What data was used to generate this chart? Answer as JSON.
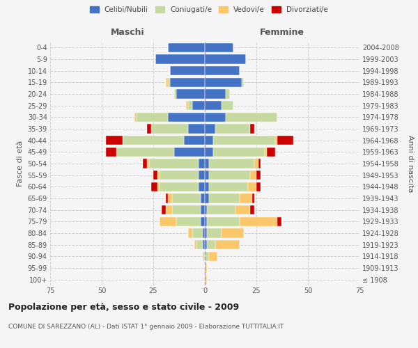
{
  "age_groups": [
    "100+",
    "95-99",
    "90-94",
    "85-89",
    "80-84",
    "75-79",
    "70-74",
    "65-69",
    "60-64",
    "55-59",
    "50-54",
    "45-49",
    "40-44",
    "35-39",
    "30-34",
    "25-29",
    "20-24",
    "15-19",
    "10-14",
    "5-9",
    "0-4"
  ],
  "birth_years": [
    "≤ 1908",
    "1909-1913",
    "1914-1918",
    "1919-1923",
    "1924-1928",
    "1929-1933",
    "1934-1938",
    "1939-1943",
    "1944-1948",
    "1949-1953",
    "1954-1958",
    "1959-1963",
    "1964-1968",
    "1969-1973",
    "1974-1978",
    "1979-1983",
    "1984-1988",
    "1989-1993",
    "1994-1998",
    "1999-2003",
    "2004-2008"
  ],
  "male": {
    "celibe": [
      0,
      0,
      0,
      1,
      1,
      2,
      2,
      2,
      3,
      3,
      3,
      15,
      10,
      8,
      18,
      6,
      14,
      17,
      17,
      24,
      18
    ],
    "coniugato": [
      0,
      0,
      1,
      3,
      5,
      12,
      14,
      14,
      19,
      19,
      24,
      28,
      30,
      18,
      15,
      2,
      1,
      1,
      0,
      0,
      0
    ],
    "vedovo": [
      0,
      0,
      0,
      1,
      2,
      8,
      3,
      2,
      1,
      1,
      1,
      0,
      0,
      0,
      1,
      1,
      0,
      1,
      0,
      0,
      0
    ],
    "divorziato": [
      0,
      0,
      0,
      0,
      0,
      0,
      2,
      1,
      3,
      2,
      2,
      5,
      8,
      2,
      0,
      0,
      0,
      0,
      0,
      0,
      0
    ]
  },
  "female": {
    "nubile": [
      0,
      0,
      0,
      1,
      1,
      1,
      1,
      2,
      2,
      2,
      2,
      4,
      4,
      5,
      10,
      8,
      10,
      18,
      17,
      20,
      14
    ],
    "coniugata": [
      0,
      0,
      2,
      4,
      7,
      16,
      14,
      15,
      19,
      20,
      22,
      25,
      30,
      17,
      25,
      6,
      2,
      1,
      0,
      0,
      0
    ],
    "vedova": [
      1,
      1,
      4,
      12,
      11,
      18,
      7,
      6,
      4,
      3,
      2,
      1,
      1,
      0,
      0,
      0,
      0,
      0,
      0,
      0,
      0
    ],
    "divorziata": [
      0,
      0,
      0,
      0,
      0,
      2,
      2,
      1,
      2,
      2,
      1,
      4,
      8,
      2,
      0,
      0,
      0,
      0,
      0,
      0,
      0
    ]
  },
  "colors": {
    "celibe": "#4472C4",
    "coniugato": "#C5D9A0",
    "vedovo": "#FAC86B",
    "divorziato": "#CC0000"
  },
  "xlim": 75,
  "title": "Popolazione per età, sesso e stato civile - 2009",
  "subtitle": "COMUNE DI SAREZZANO (AL) - Dati ISTAT 1° gennaio 2009 - Elaborazione TUTTITALIA.IT",
  "ylabel_left": "Fasce di età",
  "ylabel_right": "Anni di nascita",
  "xlabel_left": "Maschi",
  "xlabel_right": "Femmine",
  "legend_labels": [
    "Celibi/Nubili",
    "Coniugati/e",
    "Vedovi/e",
    "Divorziati/e"
  ],
  "bg_color": "#f5f5f5",
  "grid_color": "#cccccc"
}
